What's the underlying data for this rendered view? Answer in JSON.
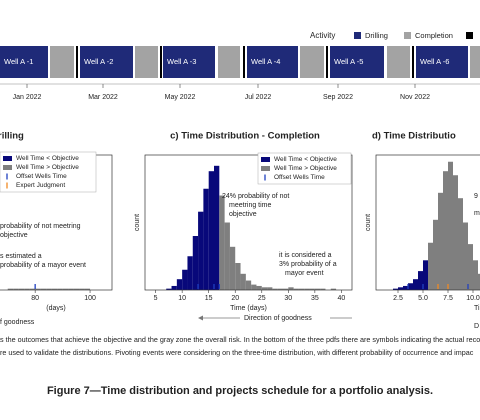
{
  "schedule": {
    "legend_title": "Activity",
    "legend": [
      {
        "label": "Drilling",
        "color": "#1f2a78"
      },
      {
        "label": "Completion",
        "color": "#a3a3a3"
      },
      {
        "color": "#000000"
      }
    ],
    "wells": [
      "Well A -1",
      "Well A -2",
      "Well A -3",
      "Well A -4",
      "Well A -5",
      "Well A -6"
    ],
    "months": [
      "Jan 2022",
      "Mar 2022",
      "May 2022",
      "Jul 2022",
      "Sep 2022",
      "Nov 2022"
    ]
  },
  "colors": {
    "below": "#08087a",
    "above": "#7f7f7f",
    "offset": "#2040c0",
    "expert": "#f08a24"
  },
  "panels": [
    {
      "title": "rilling",
      "xlim": [
        65,
        108
      ],
      "xticks": [
        80,
        100
      ],
      "ylim": [
        0,
        100
      ],
      "xlabel": "(days)",
      "direction": "f goodness",
      "legend": [
        "Well Time < Objective",
        "Well Time > Objective",
        "Offset Wells Time",
        "Expert Judgment"
      ],
      "annotations": [
        "probability of not meetring",
        "objective",
        "s estimated a",
        "probability of a mayor event"
      ],
      "bins": [
        70,
        72,
        74,
        76,
        78,
        80,
        82,
        84,
        86,
        88,
        90,
        92,
        94,
        96,
        98,
        100
      ],
      "counts": [
        1,
        1,
        1,
        1,
        1,
        1,
        1,
        1,
        1,
        1,
        1,
        1,
        1,
        1,
        1
      ],
      "offset_wells": [
        80
      ]
    },
    {
      "title": "c) Time Distribution - Completion",
      "xlim": [
        3,
        42
      ],
      "xticks": [
        5,
        10,
        15,
        20,
        25,
        30,
        35,
        40
      ],
      "ylim": [
        0,
        100
      ],
      "ylabel": "count",
      "xlabel": "Time (days)",
      "direction": "Direction of goodness",
      "objective": 17,
      "legend": [
        "Well Time < Objective",
        "Well Time > Objective",
        "Offset Wells Time"
      ],
      "annotations": [
        "24% probability of not",
        "meetring time",
        "objective",
        "it is considered a",
        "3% probability of a",
        "mayor event"
      ],
      "bins": [
        7,
        8,
        9,
        10,
        11,
        12,
        13,
        14,
        15,
        16,
        17,
        18,
        19,
        20,
        21,
        22,
        23,
        24,
        25,
        26,
        27,
        28,
        29,
        30,
        31,
        32,
        33,
        34,
        35,
        36,
        37,
        38,
        39,
        40
      ],
      "counts": [
        1,
        3,
        8,
        15,
        25,
        40,
        58,
        75,
        88,
        92,
        70,
        50,
        32,
        20,
        12,
        7,
        4,
        3,
        2,
        2,
        1,
        1,
        1,
        2,
        1,
        1,
        1,
        1,
        1,
        1,
        0,
        1,
        0
      ],
      "offset_wells": [
        13,
        16,
        17
      ]
    },
    {
      "title": "d) Time Distributio",
      "xlim": [
        0.3,
        12.5
      ],
      "xticks": [
        {
          "value": 2.5,
          "label": "2.5"
        },
        {
          "value": 5,
          "label": "5.0"
        },
        {
          "value": 7.5,
          "label": "7.5"
        },
        {
          "value": 10,
          "label": "10.0"
        }
      ],
      "ylim": [
        0,
        100
      ],
      "ylabel": "count",
      "xlabel": "Time",
      "direction": "D",
      "objective": 5.5,
      "annotations": [
        "9",
        "m"
      ],
      "bins": [
        2,
        2.5,
        3,
        3.5,
        4,
        4.5,
        5,
        5.5,
        6,
        6.5,
        7,
        7.5,
        8,
        8.5,
        9,
        9.5,
        10,
        10.5,
        11
      ],
      "counts": [
        1,
        2,
        3,
        5,
        8,
        14,
        22,
        35,
        52,
        72,
        88,
        95,
        85,
        68,
        50,
        34,
        22,
        12
      ],
      "offset_wells": [
        3.5,
        5,
        9.5
      ],
      "expert": [
        6.5,
        7.5
      ]
    }
  ],
  "body_lines": [
    "s the outcomes that achieve the objective and the gray zone the overall risk. In the bottom of the three pdfs there are symbols indicating the actual recor",
    "re used to validate the distributions. Pivoting events were considering on the three-time distribution, with different probability of occurrence and impac"
  ],
  "figure_caption": "Figure 7—Time distribution and projects schedule for a portfolio analysis."
}
